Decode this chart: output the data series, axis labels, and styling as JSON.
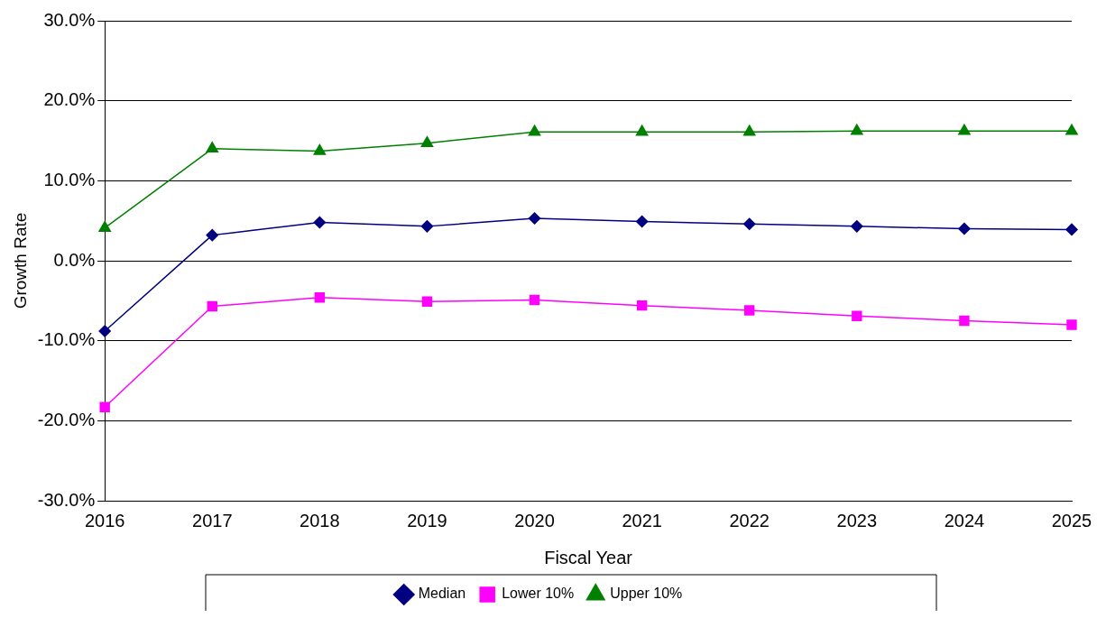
{
  "chart_data": {
    "type": "line",
    "xlabel": "Fiscal Year",
    "ylabel": "Growth Rate",
    "categories": [
      "2016",
      "2017",
      "2018",
      "2019",
      "2020",
      "2021",
      "2022",
      "2023",
      "2024",
      "2025"
    ],
    "series": [
      {
        "name": "Median",
        "color": "#000080",
        "marker": "diamond",
        "values": [
          -8.8,
          3.2,
          4.8,
          4.3,
          5.3,
          4.9,
          4.6,
          4.3,
          4.0,
          3.9
        ]
      },
      {
        "name": "Lower 10%",
        "color": "#ff00ff",
        "marker": "square",
        "values": [
          -18.3,
          -5.7,
          -4.6,
          -5.1,
          -4.9,
          -5.6,
          -6.2,
          -6.9,
          -7.5,
          -8.0
        ]
      },
      {
        "name": "Upper 10%",
        "color": "#008000",
        "marker": "triangle",
        "values": [
          4.1,
          14.0,
          13.7,
          14.7,
          16.1,
          16.1,
          16.1,
          16.2,
          16.2,
          16.2
        ]
      }
    ],
    "ylim": [
      -30,
      30
    ],
    "yticks": [
      {
        "value": -30,
        "label": "-30.0%"
      },
      {
        "value": -20,
        "label": "-20.0%"
      },
      {
        "value": -10,
        "label": "-10.0%"
      },
      {
        "value": 0,
        "label": "0.0%"
      },
      {
        "value": 10,
        "label": "10.0%"
      },
      {
        "value": 20,
        "label": "20.0%"
      },
      {
        "value": 30,
        "label": "30.0%"
      }
    ],
    "grid": "y",
    "legend": "bottom"
  }
}
